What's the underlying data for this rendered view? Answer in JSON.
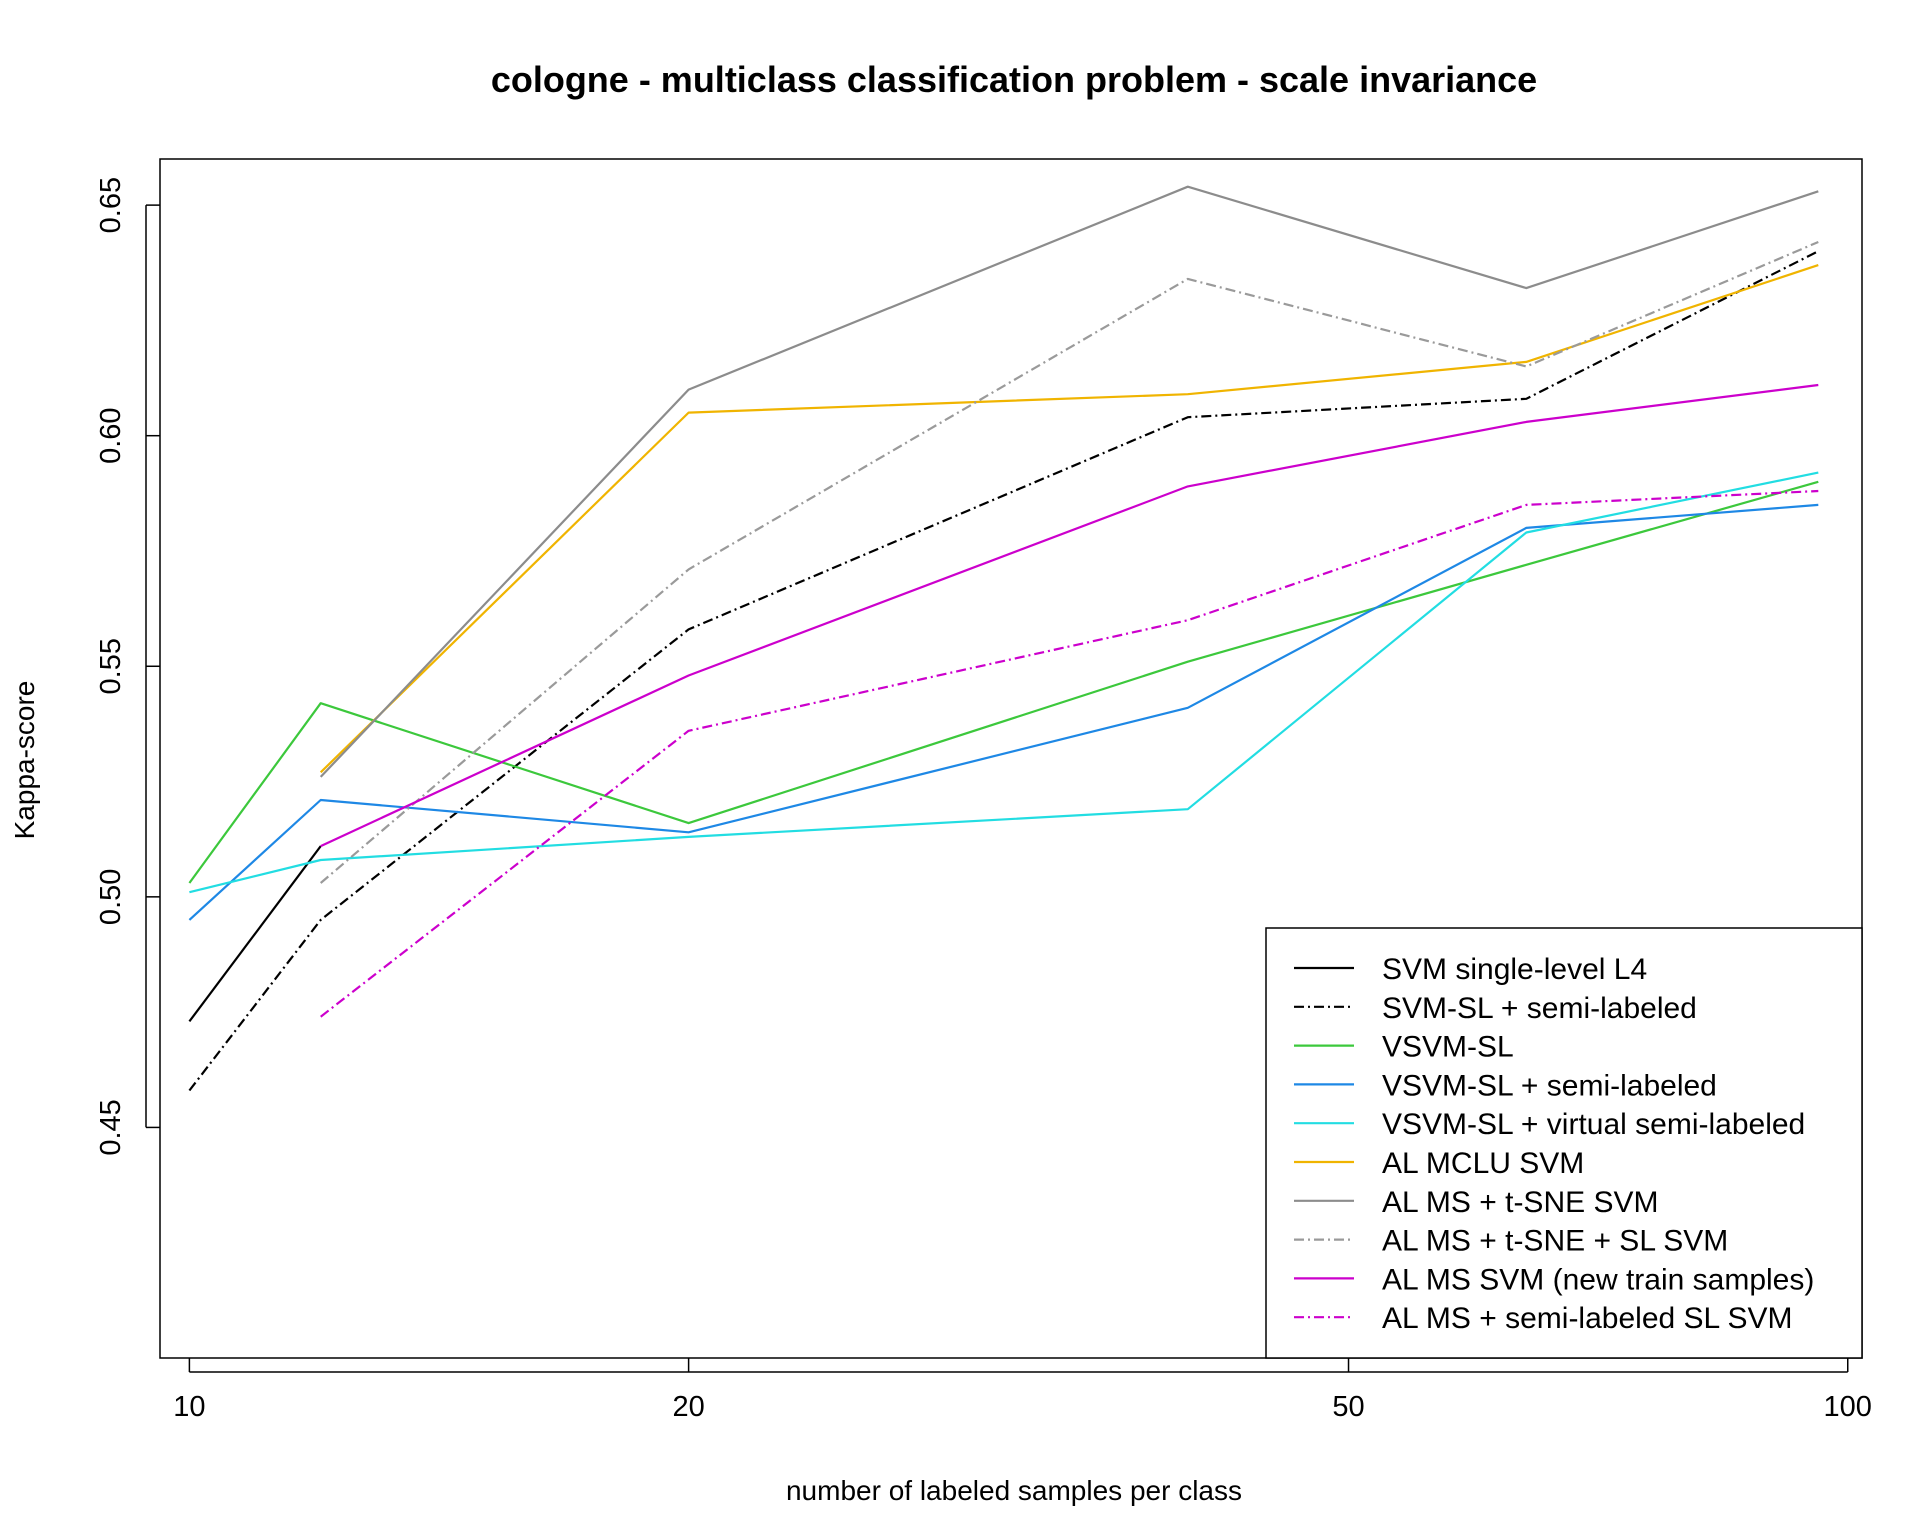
{
  "chart_data": {
    "type": "line",
    "title": "cologne - multiclass classification problem - scale invariance",
    "xlabel": "number of labeled samples per class",
    "ylabel": "Kappa-score",
    "x_scale": "log",
    "xlim": [
      9.6,
      102
    ],
    "ylim": [
      0.4,
      0.66
    ],
    "x_ticks": [
      10,
      20,
      50,
      100
    ],
    "x_tick_labels": [
      "10",
      "20",
      "50",
      "100"
    ],
    "y_ticks": [
      0.45,
      0.5,
      0.55,
      0.6,
      0.65
    ],
    "y_tick_labels": [
      "0.45",
      "0.50",
      "0.55",
      "0.60",
      "0.65"
    ],
    "grid": false,
    "legend_position": "bottom-right",
    "series": [
      {
        "name": "SVM single-level L4",
        "color": "#000000",
        "dash": "solid",
        "x": [
          10,
          12
        ],
        "y": [
          0.473,
          0.511
        ]
      },
      {
        "name": "SVM-SL + semi-labeled",
        "color": "#000000",
        "dash": "dotdash",
        "x": [
          10,
          12,
          20,
          40,
          64,
          96
        ],
        "y": [
          0.458,
          0.495,
          0.558,
          0.604,
          0.608,
          0.64
        ]
      },
      {
        "name": "VSVM-SL",
        "color": "#3cc83c",
        "dash": "solid",
        "x": [
          10,
          12,
          20,
          40,
          64,
          96
        ],
        "y": [
          0.503,
          0.542,
          0.516,
          0.551,
          0.572,
          0.59
        ]
      },
      {
        "name": "VSVM-SL + semi-labeled",
        "color": "#1e88e5",
        "dash": "solid",
        "x": [
          10,
          12,
          20,
          40,
          64,
          96
        ],
        "y": [
          0.495,
          0.521,
          0.514,
          0.541,
          0.58,
          0.585
        ]
      },
      {
        "name": "VSVM-SL + virtual semi-labeled",
        "color": "#22dde2",
        "dash": "solid",
        "x": [
          10,
          12,
          20,
          40,
          64,
          96
        ],
        "y": [
          0.501,
          0.508,
          0.513,
          0.519,
          0.579,
          0.592
        ]
      },
      {
        "name": "AL MCLU SVM",
        "color": "#f0b400",
        "dash": "solid",
        "x": [
          12,
          20,
          40,
          64,
          96
        ],
        "y": [
          0.527,
          0.605,
          0.609,
          0.616,
          0.637
        ]
      },
      {
        "name": "AL MS + t-SNE SVM",
        "color": "#8c8c8c",
        "dash": "solid",
        "x": [
          12,
          20,
          40,
          64,
          96
        ],
        "y": [
          0.526,
          0.61,
          0.654,
          0.632,
          0.653
        ]
      },
      {
        "name": "AL MS + t-SNE + SL SVM",
        "color": "#9a9a9a",
        "dash": "dotdash",
        "x": [
          12,
          20,
          40,
          64,
          96
        ],
        "y": [
          0.503,
          0.571,
          0.634,
          0.615,
          0.642
        ]
      },
      {
        "name": "AL MS SVM (new train samples)",
        "color": "#cc00cc",
        "dash": "solid",
        "x": [
          12,
          20,
          40,
          64,
          96
        ],
        "y": [
          0.511,
          0.548,
          0.589,
          0.603,
          0.611
        ]
      },
      {
        "name": "AL MS + semi-labeled SL SVM",
        "color": "#cc00cc",
        "dash": "dotdash",
        "x": [
          12,
          20,
          40,
          64,
          96
        ],
        "y": [
          0.474,
          0.536,
          0.56,
          0.585,
          0.588
        ]
      }
    ]
  }
}
